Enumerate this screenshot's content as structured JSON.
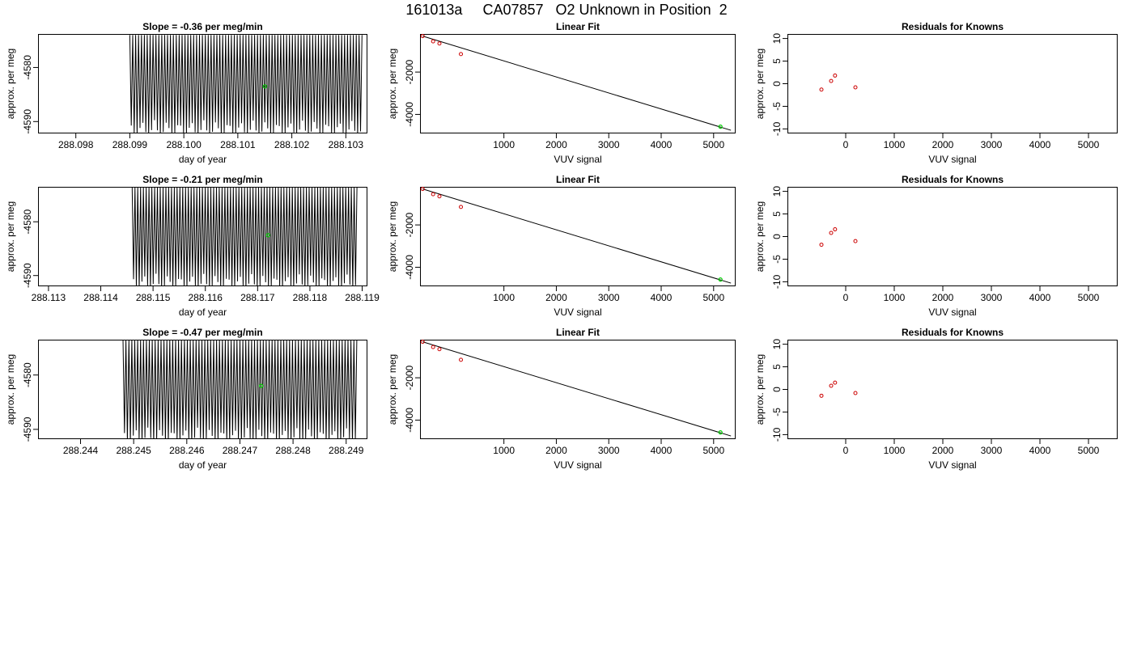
{
  "page_title": "161013a     CA07857   O2 Unknown in Position  2",
  "colors": {
    "trace": "#000000",
    "known_points": "#cc0000",
    "unknown_points": "#00cc00",
    "fit_line": "#000000"
  },
  "chart_data": [
    {
      "id": "r1-timeseries",
      "type": "line",
      "title": "Slope =  -0.36  per meg/min",
      "xlabel": "day of year",
      "ylabel": "approx. per meg",
      "xlim": [
        288.0973,
        288.1034
      ],
      "ylim": [
        -4592.2,
        -4573.8
      ],
      "xticks": [
        "288.098",
        "288.099",
        "288.100",
        "288.101",
        "288.102",
        "288.103"
      ],
      "yticks": [
        "-4580",
        "-4590"
      ],
      "trace": {
        "x_start": 288.099,
        "x_end": 288.1033,
        "y_low": -4592.5,
        "y_high": -4574.0,
        "cycles": 80
      },
      "unknown_point": {
        "x": 288.1015,
        "y": -4583.5
      }
    },
    {
      "id": "r1-fit",
      "type": "scatter",
      "title": "Linear Fit",
      "xlabel": "VUV signal",
      "ylabel": "approx. per meg",
      "xlim": [
        -600,
        5420
      ],
      "ylim": [
        -4900,
        -200
      ],
      "xticks": [
        "1000",
        "2000",
        "3000",
        "4000",
        "5000"
      ],
      "yticks": [
        "-2000",
        "-4000"
      ],
      "knowns": [
        {
          "x": -550,
          "y": -300
        },
        {
          "x": -350,
          "y": -550
        },
        {
          "x": -230,
          "y": -650
        },
        {
          "x": 180,
          "y": -1150
        }
      ],
      "unknowns": [
        {
          "x": 5130,
          "y": -4580
        }
      ],
      "fit_line": {
        "x": [
          -550,
          5330
        ],
        "y": [
          -300,
          -4750
        ]
      }
    },
    {
      "id": "r1-resid",
      "type": "scatter",
      "title": "Residuals for Knowns",
      "xlabel": "VUV signal",
      "ylabel": "approx. per meg",
      "xlim": [
        -1200,
        5600
      ],
      "ylim": [
        -11,
        11
      ],
      "xticks": [
        "0",
        "1000",
        "2000",
        "3000",
        "4000",
        "5000"
      ],
      "yticks": [
        "10",
        "5",
        "0",
        "-5",
        "-10"
      ],
      "knowns": [
        {
          "x": -500,
          "y": -1.3
        },
        {
          "x": -300,
          "y": 0.6
        },
        {
          "x": -220,
          "y": 1.8
        },
        {
          "x": 200,
          "y": -0.8
        }
      ]
    },
    {
      "id": "r2-timeseries",
      "type": "line",
      "title": "Slope =  -0.21  per meg/min",
      "xlabel": "day of year",
      "ylabel": "approx. per meg",
      "xlim": [
        288.1128,
        288.1191
      ],
      "ylim": [
        -4592.0,
        -4573.5
      ],
      "xticks": [
        "288.113",
        "288.114",
        "288.115",
        "288.116",
        "288.117",
        "288.118",
        "288.119"
      ],
      "yticks": [
        "-4580",
        "-4590"
      ],
      "trace": {
        "x_start": 288.1146,
        "x_end": 288.1189,
        "y_low": -4592.5,
        "y_high": -4573.5,
        "cycles": 80
      },
      "unknown_point": {
        "x": 288.1172,
        "y": -4582.5
      }
    },
    {
      "id": "r2-fit",
      "type": "scatter",
      "title": "Linear Fit",
      "xlabel": "VUV signal",
      "ylabel": "approx. per meg",
      "xlim": [
        -600,
        5420
      ],
      "ylim": [
        -4900,
        -200
      ],
      "xticks": [
        "1000",
        "2000",
        "3000",
        "4000",
        "5000"
      ],
      "yticks": [
        "-2000",
        "-4000"
      ],
      "knowns": [
        {
          "x": -550,
          "y": -300
        },
        {
          "x": -350,
          "y": -550
        },
        {
          "x": -230,
          "y": -650
        },
        {
          "x": 180,
          "y": -1150
        }
      ],
      "unknowns": [
        {
          "x": 5130,
          "y": -4580
        }
      ],
      "fit_line": {
        "x": [
          -550,
          5330
        ],
        "y": [
          -300,
          -4750
        ]
      }
    },
    {
      "id": "r2-resid",
      "type": "scatter",
      "title": "Residuals for Knowns",
      "xlabel": "VUV signal",
      "ylabel": "approx. per meg",
      "xlim": [
        -1200,
        5600
      ],
      "ylim": [
        -11,
        11
      ],
      "xticks": [
        "0",
        "1000",
        "2000",
        "3000",
        "4000",
        "5000"
      ],
      "yticks": [
        "10",
        "5",
        "0",
        "-5",
        "-10"
      ],
      "knowns": [
        {
          "x": -500,
          "y": -1.8
        },
        {
          "x": -300,
          "y": 0.8
        },
        {
          "x": -220,
          "y": 1.6
        },
        {
          "x": 200,
          "y": -1.0
        }
      ]
    },
    {
      "id": "r3-timeseries",
      "type": "line",
      "title": "Slope =  -0.47  per meg/min",
      "xlabel": "day of year",
      "ylabel": "approx. per meg",
      "xlim": [
        288.2432,
        288.2494
      ],
      "ylim": [
        -4591.8,
        -4573.5
      ],
      "xticks": [
        "288.244",
        "288.245",
        "288.246",
        "288.247",
        "288.248",
        "288.249"
      ],
      "yticks": [
        "-4580",
        "-4590"
      ],
      "trace": {
        "x_start": 288.2448,
        "x_end": 288.2492,
        "y_low": -4592.5,
        "y_high": -4573.5,
        "cycles": 80
      },
      "unknown_point": {
        "x": 288.2474,
        "y": -4582.0
      }
    },
    {
      "id": "r3-fit",
      "type": "scatter",
      "title": "Linear Fit",
      "xlabel": "VUV signal",
      "ylabel": "approx. per meg",
      "xlim": [
        -600,
        5420
      ],
      "ylim": [
        -4900,
        -200
      ],
      "xticks": [
        "1000",
        "2000",
        "3000",
        "4000",
        "5000"
      ],
      "yticks": [
        "-2000",
        "-4000"
      ],
      "knowns": [
        {
          "x": -550,
          "y": -300
        },
        {
          "x": -350,
          "y": -550
        },
        {
          "x": -230,
          "y": -650
        },
        {
          "x": 180,
          "y": -1150
        }
      ],
      "unknowns": [
        {
          "x": 5130,
          "y": -4580
        }
      ],
      "fit_line": {
        "x": [
          -550,
          5330
        ],
        "y": [
          -300,
          -4750
        ]
      }
    },
    {
      "id": "r3-resid",
      "type": "scatter",
      "title": "Residuals for Knowns",
      "xlabel": "VUV signal",
      "ylabel": "approx. per meg",
      "xlim": [
        -1200,
        5600
      ],
      "ylim": [
        -11,
        11
      ],
      "xticks": [
        "0",
        "1000",
        "2000",
        "3000",
        "4000",
        "5000"
      ],
      "yticks": [
        "10",
        "5",
        "0",
        "-5",
        "-10"
      ],
      "knowns": [
        {
          "x": -500,
          "y": -1.4
        },
        {
          "x": -300,
          "y": 0.8
        },
        {
          "x": -220,
          "y": 1.5
        },
        {
          "x": 200,
          "y": -0.8
        }
      ]
    }
  ]
}
